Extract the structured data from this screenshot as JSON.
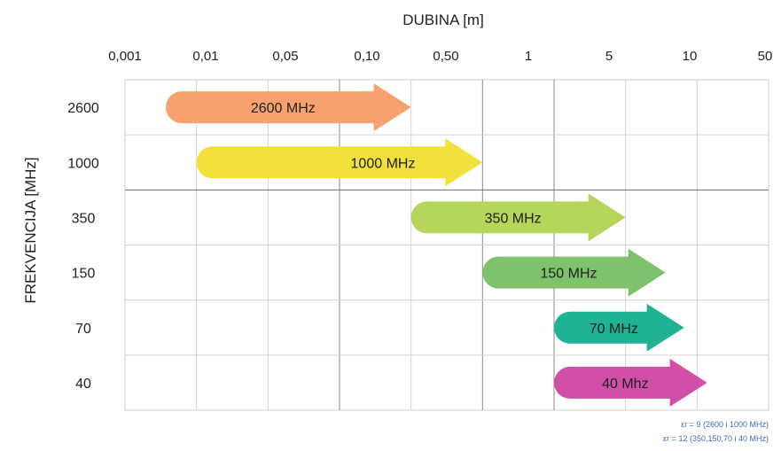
{
  "chart_data": {
    "type": "bar",
    "orientation": "horizontal-range",
    "title": "",
    "xlabel": "DUBINA [m]",
    "ylabel": "FREKVENCIJA [MHz]",
    "x_axis_position": "top",
    "x_scale": "categorical",
    "x_ticks": [
      "0,001",
      "0,01",
      "0,05",
      "0,10",
      "0,50",
      "1",
      "5",
      "10",
      "50"
    ],
    "categories": [
      "2600",
      "1000",
      "350",
      "150",
      "70",
      "40"
    ],
    "grid": true,
    "series": [
      {
        "label": "2600 MHz",
        "start": "0,001",
        "end": "0,50",
        "color": "#f7a26e"
      },
      {
        "label": "1000 MHz",
        "start": "0,01",
        "end": "1",
        "color": "#f2e13a"
      },
      {
        "label": "350 MHz",
        "start": "0,50",
        "end": "10",
        "color": "#b5d65a"
      },
      {
        "label": "150 MHz",
        "start": "1",
        "end": "10",
        "color": "#7ec26c"
      },
      {
        "label": "70 MHz",
        "start": "5",
        "end": "50",
        "color": "#1fb394"
      },
      {
        "label": "40 Mhz",
        "start": "5",
        "end": "50",
        "color": "#d14fa8"
      }
    ]
  },
  "notes": [
    "εr = 9 (2600 i 1000 MHz)",
    "εr = 12 (350,150,70 i 40 MHz)"
  ]
}
